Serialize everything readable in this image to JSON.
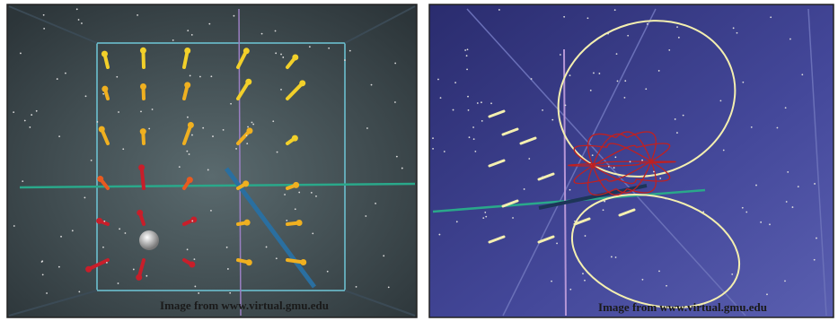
{
  "panels": [
    {
      "caption": "Image from www.virtual.gmu.edu"
    },
    {
      "caption": "Image from www.virtual.gmu.edu"
    }
  ]
}
